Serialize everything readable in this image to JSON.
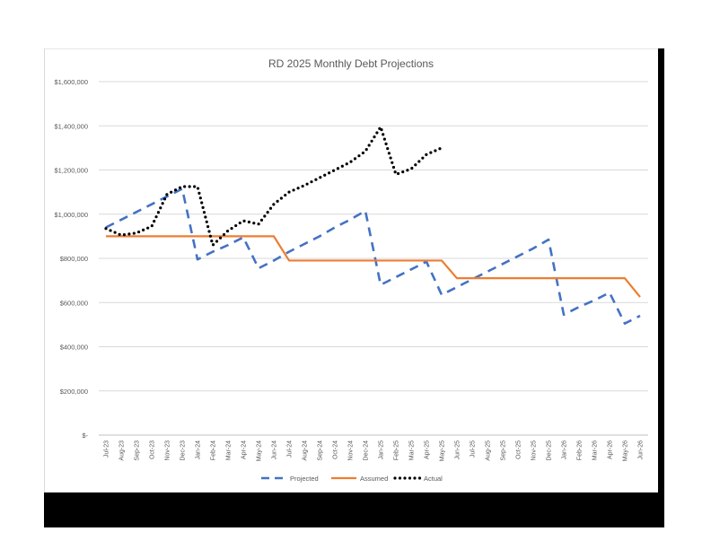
{
  "chart_data": {
    "type": "line",
    "title": "RD 2025 Monthly Debt Projections",
    "xlabel": "",
    "ylabel": "",
    "ylim": [
      0,
      1600000
    ],
    "yticks": [
      0,
      200000,
      400000,
      600000,
      800000,
      1000000,
      1200000,
      1400000,
      1600000
    ],
    "ytick_labels": [
      "$-",
      "$200,000",
      "$400,000",
      "$600,000",
      "$800,000",
      "$1,000,000",
      "$1,200,000",
      "$1,400,000",
      "$1,600,000"
    ],
    "categories": [
      "Jul-23",
      "Aug-23",
      "Sep-23",
      "Oct-23",
      "Nov-23",
      "Dec-23",
      "Jan-24",
      "Feb-24",
      "Mar-24",
      "Apr-24",
      "May-24",
      "Jun-24",
      "Jul-24",
      "Aug-24",
      "Sep-24",
      "Oct-24",
      "Nov-24",
      "Dec-24",
      "Jan-25",
      "Feb-25",
      "Mar-25",
      "Apr-25",
      "May-25",
      "Jun-25",
      "Jul-25",
      "Aug-25",
      "Sep-25",
      "Oct-25",
      "Nov-25",
      "Dec-25",
      "Jan-26",
      "Feb-26",
      "Mar-26",
      "Apr-26",
      "May-26",
      "Jun-26"
    ],
    "grid": true,
    "legend_position": "bottom",
    "series": [
      {
        "name": "Projected",
        "color": "#4472c4",
        "style": "dashed",
        "values": [
          940000,
          975000,
          1010000,
          1045000,
          1080000,
          1115000,
          795000,
          830000,
          860000,
          895000,
          755000,
          790000,
          830000,
          865000,
          900000,
          940000,
          975000,
          1015000,
          680000,
          715000,
          750000,
          785000,
          635000,
          670000,
          705000,
          740000,
          775000,
          810000,
          845000,
          885000,
          545000,
          580000,
          610000,
          645000,
          505000,
          540000
        ]
      },
      {
        "name": "Assumed",
        "color": "#ed7d31",
        "style": "solid",
        "values": [
          900000,
          900000,
          900000,
          900000,
          900000,
          900000,
          900000,
          900000,
          900000,
          900000,
          900000,
          900000,
          790000,
          790000,
          790000,
          790000,
          790000,
          790000,
          790000,
          790000,
          790000,
          790000,
          790000,
          710000,
          710000,
          710000,
          710000,
          710000,
          710000,
          710000,
          710000,
          710000,
          710000,
          710000,
          710000,
          625000
        ]
      },
      {
        "name": "Actual",
        "color": "#000000",
        "style": "dotted",
        "values": [
          935000,
          905000,
          915000,
          945000,
          1090000,
          1125000,
          1125000,
          860000,
          925000,
          970000,
          955000,
          1045000,
          1100000,
          1130000,
          1165000,
          1200000,
          1235000,
          1285000,
          1395000,
          1180000,
          1205000,
          1270000,
          1300000,
          null,
          null,
          null,
          null,
          null,
          null,
          null,
          null,
          null,
          null,
          null,
          null,
          null
        ]
      }
    ]
  }
}
